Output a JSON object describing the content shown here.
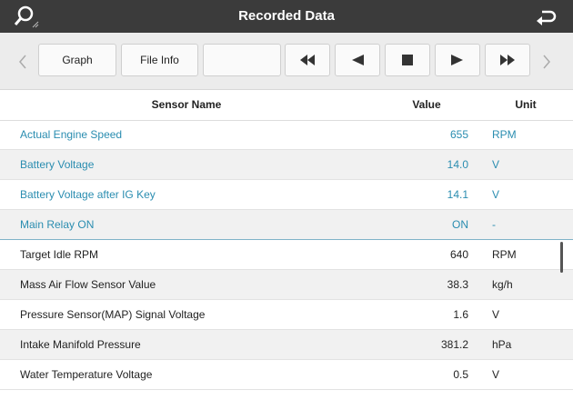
{
  "header": {
    "title": "Recorded Data"
  },
  "toolbar": {
    "buttons": [
      "Graph",
      "File Info"
    ]
  },
  "table": {
    "columns": [
      "Sensor Name",
      "Value",
      "Unit"
    ],
    "highlighted_rows": 4,
    "rows": [
      [
        "Actual Engine Speed",
        "655",
        "RPM"
      ],
      [
        "Battery Voltage",
        "14.0",
        "V"
      ],
      [
        "Battery Voltage after IG Key",
        "14.1",
        "V"
      ],
      [
        "Main Relay ON",
        "ON",
        "-"
      ],
      [
        "Target Idle RPM",
        "640",
        "RPM"
      ],
      [
        "Mass Air Flow Sensor Value",
        "38.3",
        "kg/h"
      ],
      [
        "Pressure Sensor(MAP) Signal Voltage",
        "1.6",
        "V"
      ],
      [
        "Intake Manifold Pressure",
        "381.2",
        "hPa"
      ],
      [
        "Water Temperature Voltage",
        "0.5",
        "V"
      ]
    ]
  }
}
